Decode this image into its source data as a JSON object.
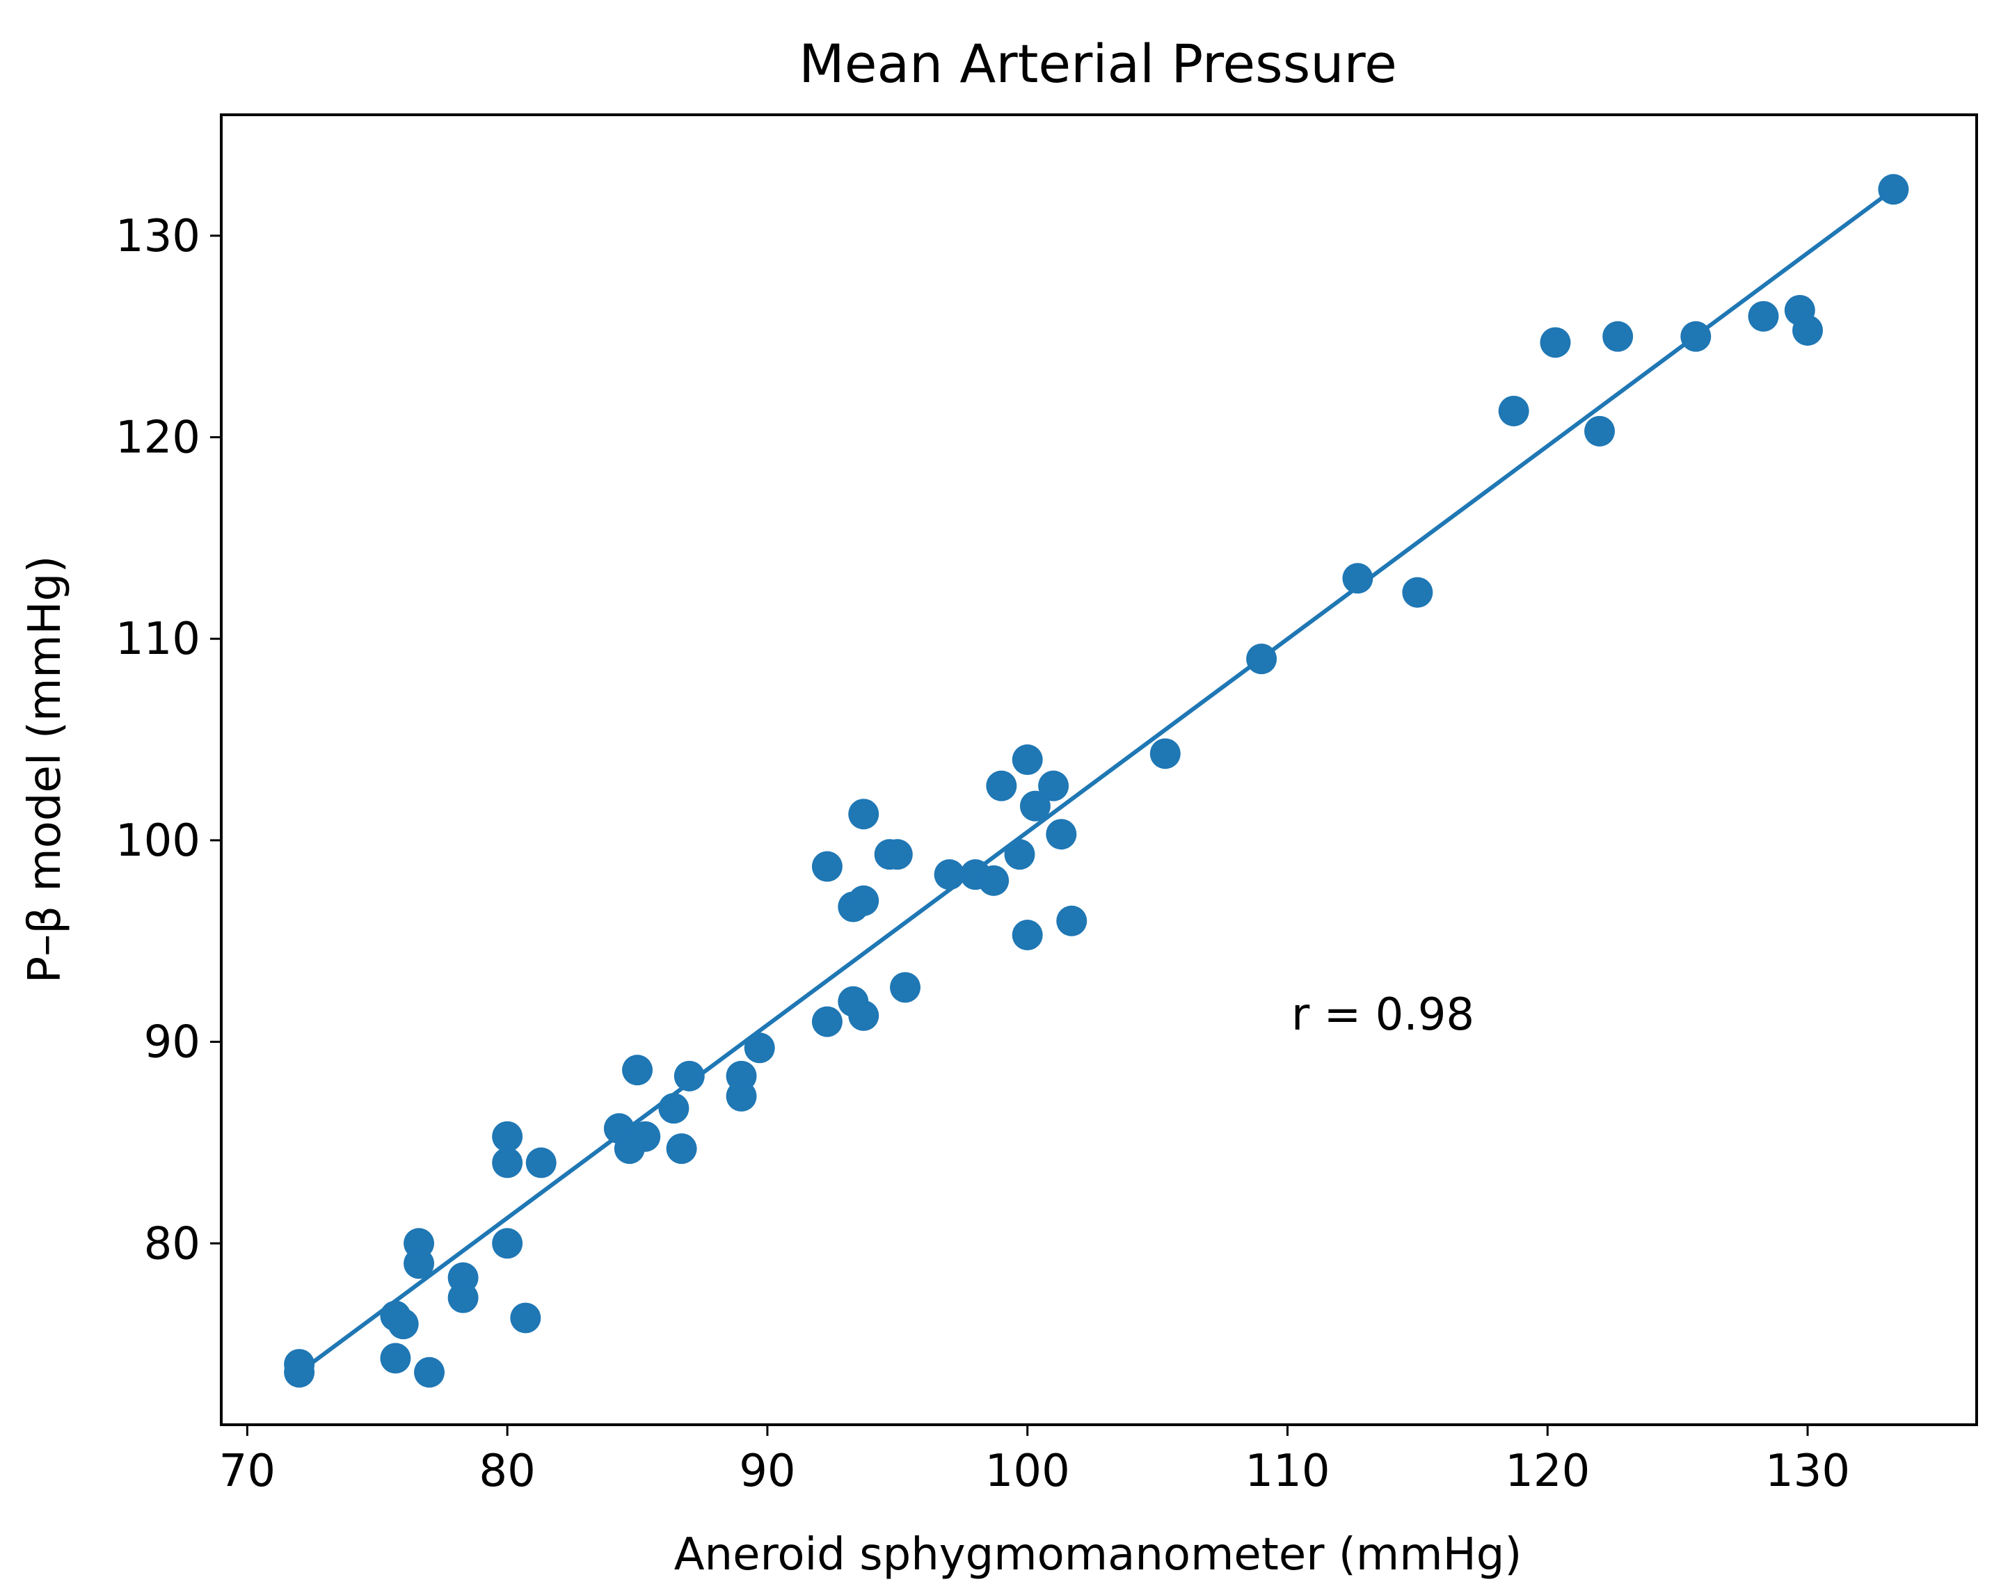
{
  "chart_data": {
    "type": "scatter",
    "title": "Mean Arterial Pressure",
    "xlabel": "Aneroid sphygmomanometer (mmHg)",
    "ylabel": "P–β model (mmHg)",
    "xlim": [
      69,
      136.5
    ],
    "ylim": [
      71,
      136
    ],
    "xticks": [
      70,
      80,
      90,
      100,
      110,
      120,
      130
    ],
    "yticks": [
      80,
      90,
      100,
      110,
      120,
      130
    ],
    "grid": false,
    "annotation": "r = 0.98",
    "color": "#1f77b4",
    "series": [
      {
        "points": [
          [
            72.0,
            74.0
          ],
          [
            72.0,
            73.6
          ],
          [
            75.7,
            76.4
          ],
          [
            76.0,
            76.0
          ],
          [
            75.7,
            74.3
          ],
          [
            77.0,
            73.6
          ],
          [
            76.6,
            80.0
          ],
          [
            76.6,
            79.0
          ],
          [
            78.3,
            78.3
          ],
          [
            78.3,
            77.3
          ],
          [
            80.0,
            80.0
          ],
          [
            80.7,
            76.3
          ],
          [
            80.0,
            85.3
          ],
          [
            80.0,
            84.0
          ],
          [
            81.3,
            84.0
          ],
          [
            84.3,
            85.7
          ],
          [
            84.7,
            84.7
          ],
          [
            85.3,
            85.3
          ],
          [
            85.0,
            88.6
          ],
          [
            86.4,
            86.7
          ],
          [
            86.7,
            84.7
          ],
          [
            87.0,
            88.3
          ],
          [
            89.0,
            88.3
          ],
          [
            89.0,
            87.3
          ],
          [
            89.7,
            89.7
          ],
          [
            92.3,
            98.7
          ],
          [
            92.3,
            91.0
          ],
          [
            93.3,
            96.7
          ],
          [
            93.7,
            97.0
          ],
          [
            93.3,
            92.0
          ],
          [
            93.7,
            91.3
          ],
          [
            93.7,
            101.3
          ],
          [
            94.7,
            99.3
          ],
          [
            95.0,
            99.3
          ],
          [
            95.3,
            92.7
          ],
          [
            97.0,
            98.3
          ],
          [
            98.0,
            98.3
          ],
          [
            98.7,
            98.0
          ],
          [
            99.0,
            102.7
          ],
          [
            99.7,
            99.3
          ],
          [
            100.0,
            104.0
          ],
          [
            100.3,
            101.7
          ],
          [
            101.0,
            102.7
          ],
          [
            101.3,
            100.3
          ],
          [
            100.0,
            95.3
          ],
          [
            101.7,
            96.0
          ],
          [
            105.3,
            104.3
          ],
          [
            109.0,
            109.0
          ],
          [
            112.7,
            113.0
          ],
          [
            115.0,
            112.3
          ],
          [
            118.7,
            121.3
          ],
          [
            120.3,
            124.7
          ],
          [
            122.0,
            120.3
          ],
          [
            122.7,
            125.0
          ],
          [
            125.7,
            125.0
          ],
          [
            128.3,
            126.0
          ],
          [
            129.7,
            126.3
          ],
          [
            130.0,
            125.3
          ],
          [
            133.3,
            132.3
          ]
        ]
      }
    ],
    "fit_line": {
      "x": [
        72.0,
        133.3
      ],
      "y": [
        73.6,
        132.3
      ]
    }
  }
}
